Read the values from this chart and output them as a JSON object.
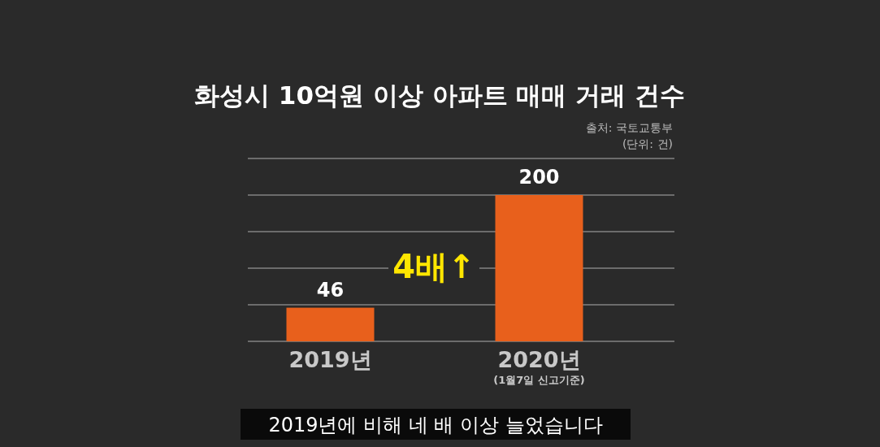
{
  "chart_data": {
    "type": "bar",
    "title": "화성시 10억원 이상 아파트 매매 거래 건수",
    "categories": [
      "2019년",
      "2020년\n(1월7일 신고기준)"
    ],
    "values": [
      46,
      200
    ],
    "color": "#e8601c",
    "data_labels": true,
    "ylim": [
      0,
      250
    ],
    "yticks": [
      0,
      50,
      100,
      150,
      200,
      250
    ],
    "grid": "y",
    "tick_labels": false,
    "annotations": [
      "출처: 국토교통부",
      "(단위: 건)",
      "4배↑",
      "2019년에 비해 네 배 이상 늘었습니다"
    ]
  }
}
